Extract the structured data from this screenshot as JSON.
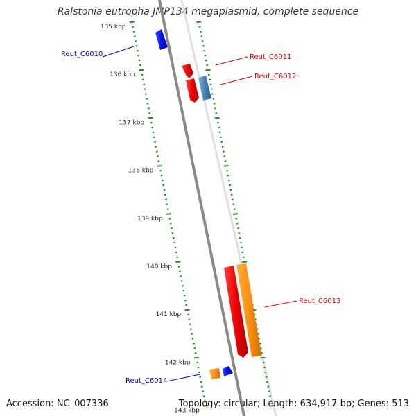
{
  "title": "Ralstonia eutropha JMP134 megaplasmid, complete sequence",
  "footer": {
    "accession": "Accession: NC_007336",
    "summary": "Topology: circular; Length: 634,917 bp; Genes: 513"
  },
  "ruler": [
    {
      "label": "135 kbp"
    },
    {
      "label": "136 kbp"
    },
    {
      "label": "137 kbp"
    },
    {
      "label": "138 kbp"
    },
    {
      "label": "139 kbp"
    },
    {
      "label": "140 kbp"
    },
    {
      "label": "141 kbp"
    },
    {
      "label": "142 kbp"
    },
    {
      "label": "143 kbp"
    }
  ],
  "genes": [
    {
      "name": "Reut_C6010",
      "color": "#0000ff"
    },
    {
      "name": "Reut_C6011",
      "color": "#ff0000"
    },
    {
      "name": "Reut_C6012",
      "color": "#ff0000"
    },
    {
      "name": "Reut_C6013",
      "color": "#ff0000"
    },
    {
      "name": "Reut_C6014",
      "color": "#0000cc"
    }
  ],
  "colors": {
    "backbone": "#8a8a8a",
    "tick": "#228b22",
    "forward_cds": "#ff0000",
    "reverse_cds": "#0000ff",
    "rna": "#ff8c00",
    "misc": "#4682b4"
  }
}
